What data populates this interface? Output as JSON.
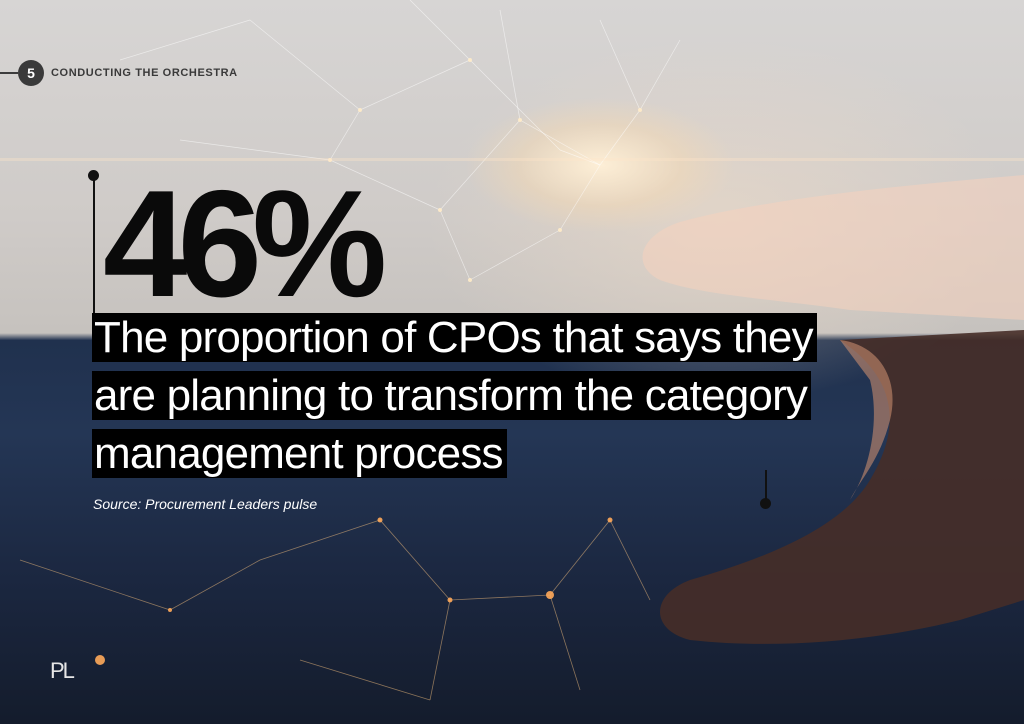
{
  "chapter": {
    "number": "5",
    "title": "CONDUCTING THE ORCHESTRA"
  },
  "stat": {
    "value": "46%"
  },
  "statement": {
    "text": "The proportion of CPOs that says they are planning to transform the category management process"
  },
  "source": {
    "text": "Source: Procurement Leaders pulse"
  },
  "logo": {
    "text": "PL"
  },
  "colors": {
    "accent": "#000000",
    "text_light": "#ffffff",
    "chapter_badge": "#3a3a3a"
  },
  "background": {
    "image": "network-of-light-lines-with-pointing-hand"
  }
}
